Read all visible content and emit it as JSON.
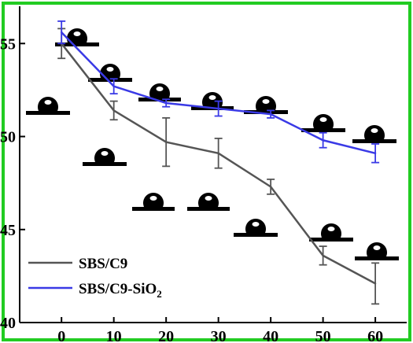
{
  "chart_data": {
    "type": "line",
    "title": "",
    "xlabel": "",
    "ylabel": "",
    "x": [
      0,
      10,
      20,
      30,
      40,
      50,
      60
    ],
    "xlim": [
      -8,
      66
    ],
    "ylim": [
      40,
      57
    ],
    "x_ticks": [
      "0",
      "10",
      "20",
      "30",
      "40",
      "50",
      "60"
    ],
    "y_ticks": [
      "40",
      "45",
      "50",
      "55"
    ],
    "grid": false,
    "legend_position": "bottom-left",
    "series": [
      {
        "name": "SBS/C9",
        "color": "#555555",
        "values": [
          55.0,
          51.4,
          49.7,
          49.1,
          47.3,
          43.6,
          42.1
        ],
        "errors": [
          0.8,
          0.5,
          1.3,
          0.8,
          0.4,
          0.5,
          1.1
        ]
      },
      {
        "name": "SBS/C9-SiO",
        "name_subscript": "2",
        "color": "#3a3ae6",
        "values": [
          55.6,
          52.7,
          51.8,
          51.5,
          51.2,
          49.8,
          49.1
        ],
        "errors": [
          0.6,
          0.4,
          0.2,
          0.4,
          0.2,
          0.4,
          0.5
        ]
      }
    ],
    "droplet_insets": 13
  },
  "frame_color": "#22cc22"
}
